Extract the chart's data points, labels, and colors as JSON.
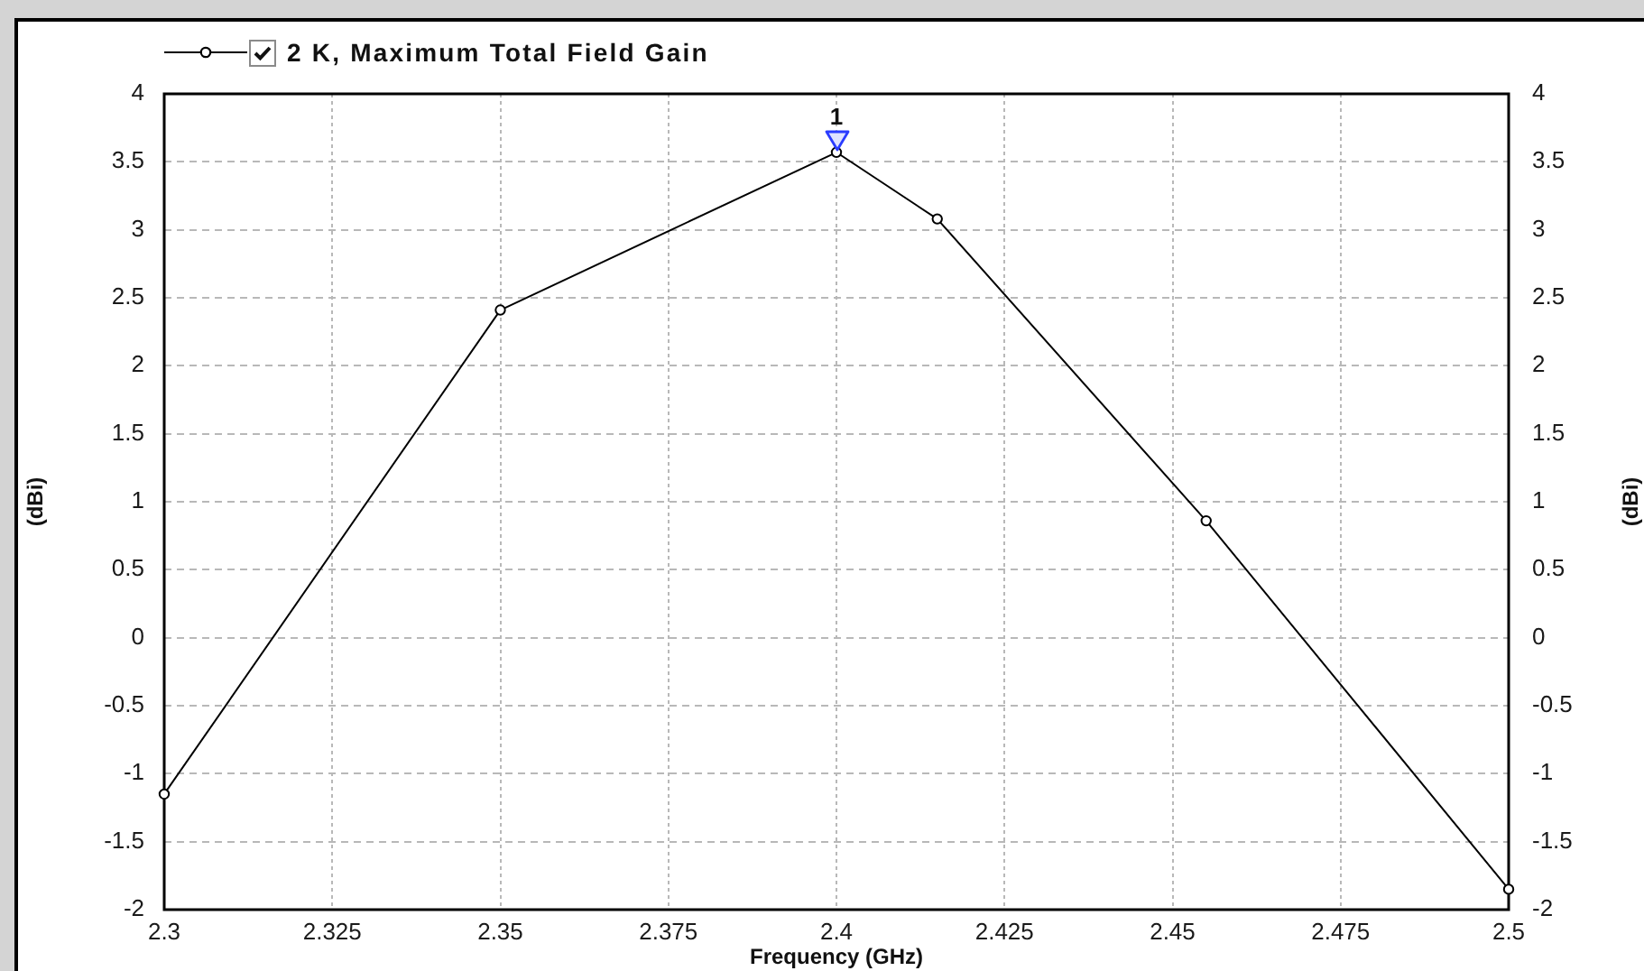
{
  "chart_data": {
    "type": "line",
    "xlabel": "Frequency (GHz)",
    "ylabel": "(dBi)",
    "y2label": "(dBi)",
    "x": [
      2.3,
      2.35,
      2.4,
      2.415,
      2.455,
      2.5
    ],
    "series": [
      {
        "name": "2 K, Maximum Total Field Gain",
        "color": "#000000",
        "values": [
          -1.15,
          2.41,
          3.57,
          3.08,
          0.86,
          -1.85
        ]
      }
    ],
    "xlim": [
      2.3,
      2.5
    ],
    "xticks": [
      2.3,
      2.325,
      2.35,
      2.375,
      2.4,
      2.425,
      2.45,
      2.475,
      2.5
    ],
    "ylim": [
      -2,
      4
    ],
    "yticks": [
      -2,
      -1.5,
      -1,
      -0.5,
      0,
      0.5,
      1,
      1.5,
      2,
      2.5,
      3,
      3.5,
      4
    ],
    "y2lim": [
      -2,
      4
    ],
    "y2ticks": [
      -2,
      -1.5,
      -1,
      -0.5,
      0,
      0.5,
      1,
      1.5,
      2,
      2.5,
      3,
      3.5,
      4
    ],
    "annotations": [
      {
        "text": "1",
        "x": 2.4,
        "y": 3.57
      }
    ],
    "grid": true,
    "legend": "top left",
    "marker": "circle",
    "line_style": "solid"
  }
}
